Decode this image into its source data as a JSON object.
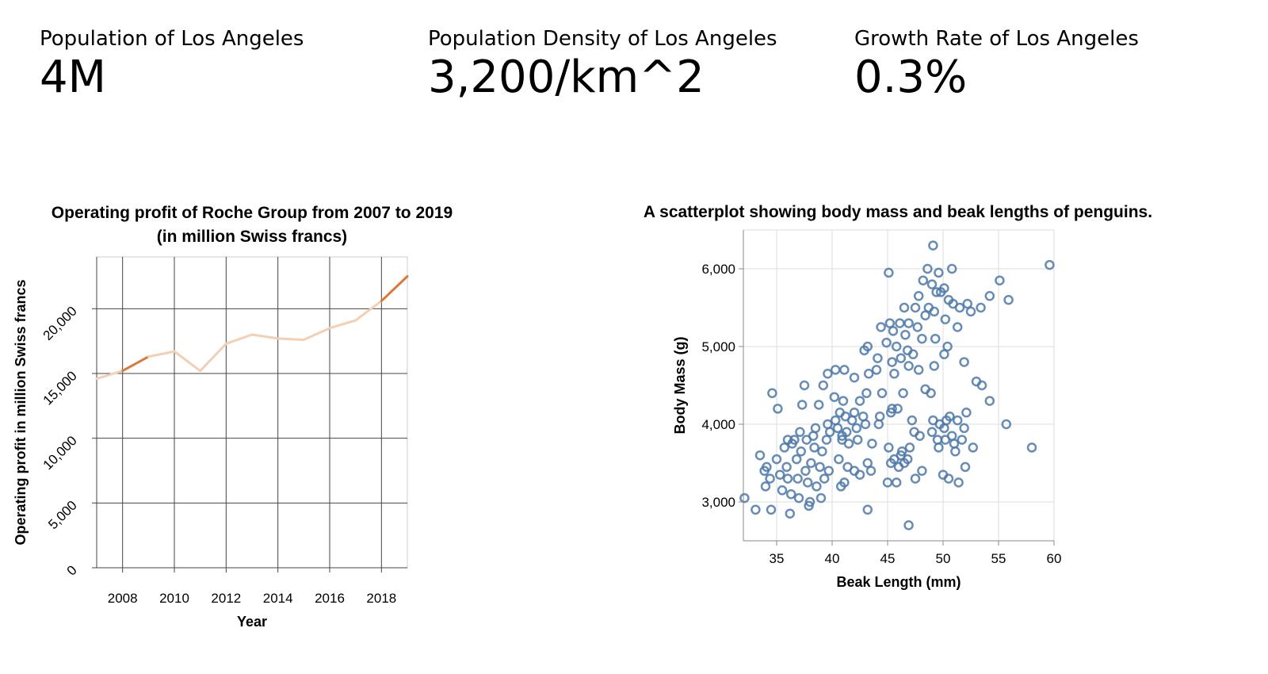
{
  "kpis": [
    {
      "label": "Population of Los Angeles",
      "value": "4M"
    },
    {
      "label": "Population Density of Los Angeles",
      "value": "3,200/km^2"
    },
    {
      "label": "Growth Rate of Los Angeles",
      "value": "0.3%"
    }
  ],
  "chart_data": [
    {
      "type": "line",
      "title_lines": [
        "Operating profit of Roche Group from 2007 to 2019",
        "(in million Swiss francs)"
      ],
      "xlabel": "Year",
      "ylabel": "Operating profit in million Swiss francs",
      "x_ticks": [
        "2008",
        "2010",
        "2012",
        "2014",
        "2016",
        "2018"
      ],
      "y_ticks": [
        "0",
        "5,000",
        "10,000",
        "15,000",
        "20,000"
      ],
      "xlim": [
        2007,
        2019
      ],
      "ylim": [
        0,
        24000
      ],
      "grid": true,
      "highlight_color": "#d97a3c",
      "faded_color": "#f3cfb3",
      "series": [
        {
          "x": [
            2007,
            2008,
            2009,
            2010,
            2011,
            2012,
            2013,
            2014,
            2015,
            2016,
            2017,
            2018,
            2019
          ],
          "values": [
            14600,
            15200,
            16300,
            16700,
            15200,
            17300,
            18000,
            17700,
            17600,
            18500,
            19100,
            20600,
            22500
          ],
          "highlighted_ranges": [
            [
              2008,
              2009
            ],
            [
              2018,
              2019
            ]
          ]
        }
      ]
    },
    {
      "type": "scatter",
      "title": "A scatterplot showing body mass and beak lengths of penguins.",
      "xlabel": "Beak Length (mm)",
      "ylabel": "Body Mass (g)",
      "x_ticks": [
        "35",
        "40",
        "45",
        "50",
        "55",
        "60"
      ],
      "y_ticks": [
        "3,000",
        "4,000",
        "5,000",
        "6,000"
      ],
      "xlim": [
        32,
        60
      ],
      "ylim": [
        2500,
        6500
      ],
      "grid": true,
      "color": "#4c78a8",
      "series": [
        {
          "points": [
            [
              49.1,
              6300
            ],
            [
              48.6,
              6000
            ],
            [
              49.6,
              5950
            ],
            [
              50.8,
              6000
            ],
            [
              59.6,
              6050
            ],
            [
              45.1,
              5950
            ],
            [
              48.2,
              5850
            ],
            [
              49.0,
              5800
            ],
            [
              49.4,
              5700
            ],
            [
              49.8,
              5700
            ],
            [
              50.1,
              5750
            ],
            [
              50.5,
              5600
            ],
            [
              50.9,
              5550
            ],
            [
              48.7,
              5500
            ],
            [
              49.2,
              5450
            ],
            [
              47.8,
              5650
            ],
            [
              55.1,
              5850
            ],
            [
              54.2,
              5650
            ],
            [
              55.9,
              5600
            ],
            [
              52.2,
              5550
            ],
            [
              51.5,
              5500
            ],
            [
              53.4,
              5500
            ],
            [
              46.5,
              5500
            ],
            [
              47.5,
              5500
            ],
            [
              48.4,
              5400
            ],
            [
              50.2,
              5350
            ],
            [
              51.3,
              5250
            ],
            [
              52.5,
              5450
            ],
            [
              44.4,
              5250
            ],
            [
              45.2,
              5300
            ],
            [
              46.1,
              5300
            ],
            [
              46.9,
              5300
            ],
            [
              47.7,
              5250
            ],
            [
              45.5,
              5200
            ],
            [
              46.6,
              5150
            ],
            [
              43.2,
              5000
            ],
            [
              42.9,
              4950
            ],
            [
              44.9,
              5050
            ],
            [
              45.8,
              5000
            ],
            [
              46.8,
              4950
            ],
            [
              47.3,
              4900
            ],
            [
              48.1,
              5100
            ],
            [
              49.3,
              5100
            ],
            [
              50.4,
              5000
            ],
            [
              46.2,
              4850
            ],
            [
              44.1,
              4850
            ],
            [
              45.4,
              4800
            ],
            [
              46.9,
              4750
            ],
            [
              47.8,
              4700
            ],
            [
              49.2,
              4750
            ],
            [
              50.1,
              4900
            ],
            [
              51.9,
              4800
            ],
            [
              44.0,
              4700
            ],
            [
              43.3,
              4650
            ],
            [
              45.6,
              4650
            ],
            [
              40.3,
              4700
            ],
            [
              41.1,
              4700
            ],
            [
              42.0,
              4600
            ],
            [
              39.6,
              4650
            ],
            [
              39.2,
              4500
            ],
            [
              37.5,
              4500
            ],
            [
              34.6,
              4400
            ],
            [
              43.1,
              4400
            ],
            [
              44.5,
              4400
            ],
            [
              46.4,
              4400
            ],
            [
              48.4,
              4450
            ],
            [
              48.9,
              4400
            ],
            [
              41.0,
              4300
            ],
            [
              42.5,
              4300
            ],
            [
              40.2,
              4350
            ],
            [
              38.8,
              4250
            ],
            [
              37.3,
              4250
            ],
            [
              35.1,
              4200
            ],
            [
              45.4,
              4200
            ],
            [
              45.9,
              4200
            ],
            [
              40.7,
              4150
            ],
            [
              42.8,
              4100
            ],
            [
              44.3,
              4100
            ],
            [
              45.3,
              4150
            ],
            [
              47.2,
              4050
            ],
            [
              49.7,
              4000
            ],
            [
              50.6,
              4100
            ],
            [
              51.3,
              4050
            ],
            [
              52.1,
              4150
            ],
            [
              50.3,
              4050
            ],
            [
              53.0,
              4550
            ],
            [
              53.5,
              4500
            ],
            [
              54.2,
              4300
            ],
            [
              55.7,
              4000
            ],
            [
              58.0,
              3700
            ],
            [
              36.6,
              3800
            ],
            [
              37.7,
              3800
            ],
            [
              38.3,
              3850
            ],
            [
              39.5,
              3800
            ],
            [
              40.9,
              3800
            ],
            [
              41.5,
              3750
            ],
            [
              42.3,
              3800
            ],
            [
              43.6,
              3750
            ],
            [
              45.1,
              3700
            ],
            [
              46.2,
              3600
            ],
            [
              47.0,
              3700
            ],
            [
              47.9,
              3850
            ],
            [
              49.5,
              3800
            ],
            [
              50.2,
              3800
            ],
            [
              51.0,
              3750
            ],
            [
              51.7,
              3800
            ],
            [
              52.7,
              3700
            ],
            [
              34.1,
              3450
            ],
            [
              35.0,
              3550
            ],
            [
              35.9,
              3450
            ],
            [
              36.8,
              3550
            ],
            [
              37.6,
              3400
            ],
            [
              38.1,
              3500
            ],
            [
              38.9,
              3450
            ],
            [
              39.7,
              3400
            ],
            [
              40.6,
              3550
            ],
            [
              41.4,
              3450
            ],
            [
              42.0,
              3400
            ],
            [
              43.2,
              3500
            ],
            [
              45.3,
              3500
            ],
            [
              46.0,
              3450
            ],
            [
              46.5,
              3500
            ],
            [
              48.1,
              3400
            ],
            [
              50.0,
              3350
            ],
            [
              50.5,
              3300
            ],
            [
              51.4,
              3250
            ],
            [
              52.0,
              3450
            ],
            [
              33.5,
              3600
            ],
            [
              33.9,
              3400
            ],
            [
              34.4,
              3300
            ],
            [
              35.3,
              3350
            ],
            [
              36.0,
              3300
            ],
            [
              36.9,
              3300
            ],
            [
              37.8,
              3250
            ],
            [
              38.6,
              3200
            ],
            [
              39.3,
              3300
            ],
            [
              40.8,
              3200
            ],
            [
              41.1,
              3250
            ],
            [
              42.5,
              3350
            ],
            [
              43.5,
              3400
            ],
            [
              45.0,
              3250
            ],
            [
              45.8,
              3250
            ],
            [
              47.5,
              3300
            ],
            [
              34.0,
              3200
            ],
            [
              35.5,
              3150
            ],
            [
              36.3,
              3100
            ],
            [
              37.0,
              3050
            ],
            [
              38.0,
              3000
            ],
            [
              39.0,
              3050
            ],
            [
              32.1,
              3050
            ],
            [
              33.1,
              2900
            ],
            [
              34.5,
              2900
            ],
            [
              36.2,
              2850
            ],
            [
              37.9,
              2950
            ],
            [
              43.2,
              2900
            ],
            [
              46.9,
              2700
            ],
            [
              35.7,
              3700
            ],
            [
              36.4,
              3750
            ],
            [
              37.2,
              3650
            ],
            [
              38.4,
              3700
            ],
            [
              39.1,
              3650
            ],
            [
              39.8,
              3900
            ],
            [
              40.5,
              3950
            ],
            [
              41.3,
              3900
            ],
            [
              42.2,
              3950
            ],
            [
              43.0,
              4000
            ],
            [
              44.2,
              4000
            ],
            [
              36.0,
              3800
            ],
            [
              37.1,
              3900
            ],
            [
              38.5,
              3950
            ],
            [
              39.6,
              4000
            ],
            [
              40.3,
              4050
            ],
            [
              41.2,
              4100
            ],
            [
              42.0,
              4150
            ],
            [
              40.9,
              3850
            ],
            [
              41.8,
              4050
            ],
            [
              45.6,
              3550
            ],
            [
              46.3,
              3650
            ],
            [
              46.8,
              3550
            ],
            [
              47.4,
              3900
            ],
            [
              49.0,
              3900
            ],
            [
              49.6,
              3700
            ],
            [
              50.8,
              3850
            ],
            [
              51.1,
              3650
            ],
            [
              51.9,
              3950
            ],
            [
              50.1,
              3950
            ],
            [
              49.1,
              4050
            ]
          ]
        }
      ]
    }
  ]
}
